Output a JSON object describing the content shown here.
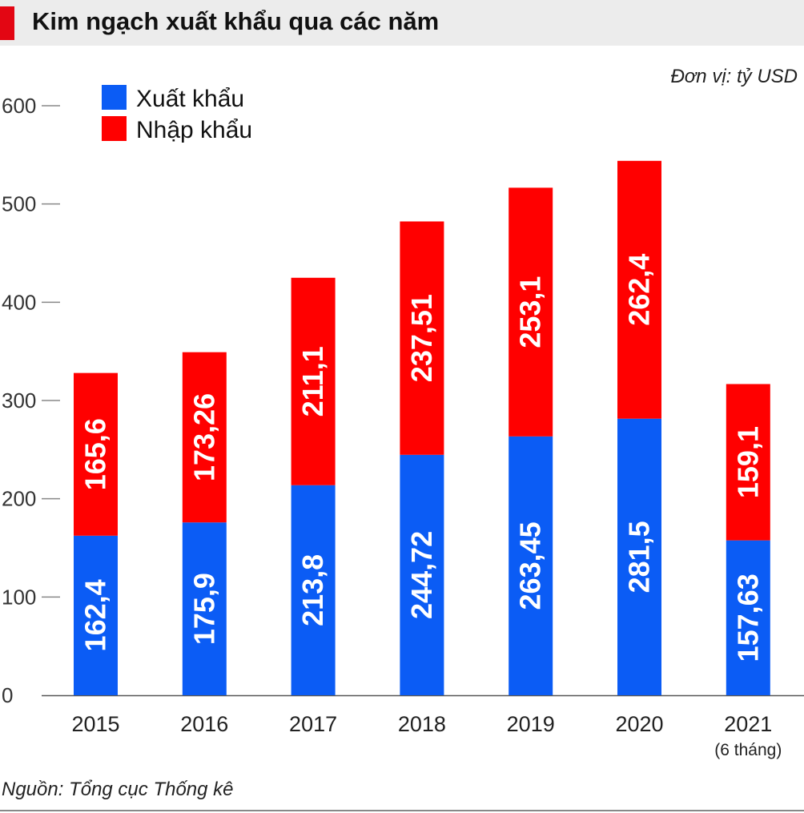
{
  "header": {
    "title": "Kim ngạch xuất khẩu qua các năm"
  },
  "unit": "Đơn vị: tỷ USD",
  "source": "Nguồn: Tổng cục Thống kê",
  "chart_data": {
    "type": "bar",
    "stacked": true,
    "title": "Kim ngạch xuất khẩu qua các năm",
    "categories": [
      "2015",
      "2016",
      "2017",
      "2018",
      "2019",
      "2020",
      "2021"
    ],
    "category_sublabels": [
      "",
      "",
      "",
      "",
      "",
      "",
      "(6 tháng)"
    ],
    "series": [
      {
        "name": "Xuất khẩu",
        "color": "#0b5cf5",
        "values": [
          162.4,
          175.9,
          213.8,
          244.72,
          263.45,
          281.5,
          157.63
        ],
        "labels": [
          "162,4",
          "175,9",
          "213,8",
          "244,72",
          "263,45",
          "281,5",
          "157,63"
        ]
      },
      {
        "name": "Nhập khẩu",
        "color": "#ff0000",
        "values": [
          165.6,
          173.26,
          211.1,
          237.51,
          253.1,
          262.4,
          159.1
        ],
        "labels": [
          "165,6",
          "173,26",
          "211,1",
          "237,51",
          "253,1",
          "262,4",
          "159,1"
        ]
      }
    ],
    "yticks": [
      "0",
      "100",
      "200",
      "300",
      "400",
      "500",
      "600"
    ],
    "ylim": [
      0,
      600
    ],
    "grid": false,
    "legend": "top-left"
  }
}
